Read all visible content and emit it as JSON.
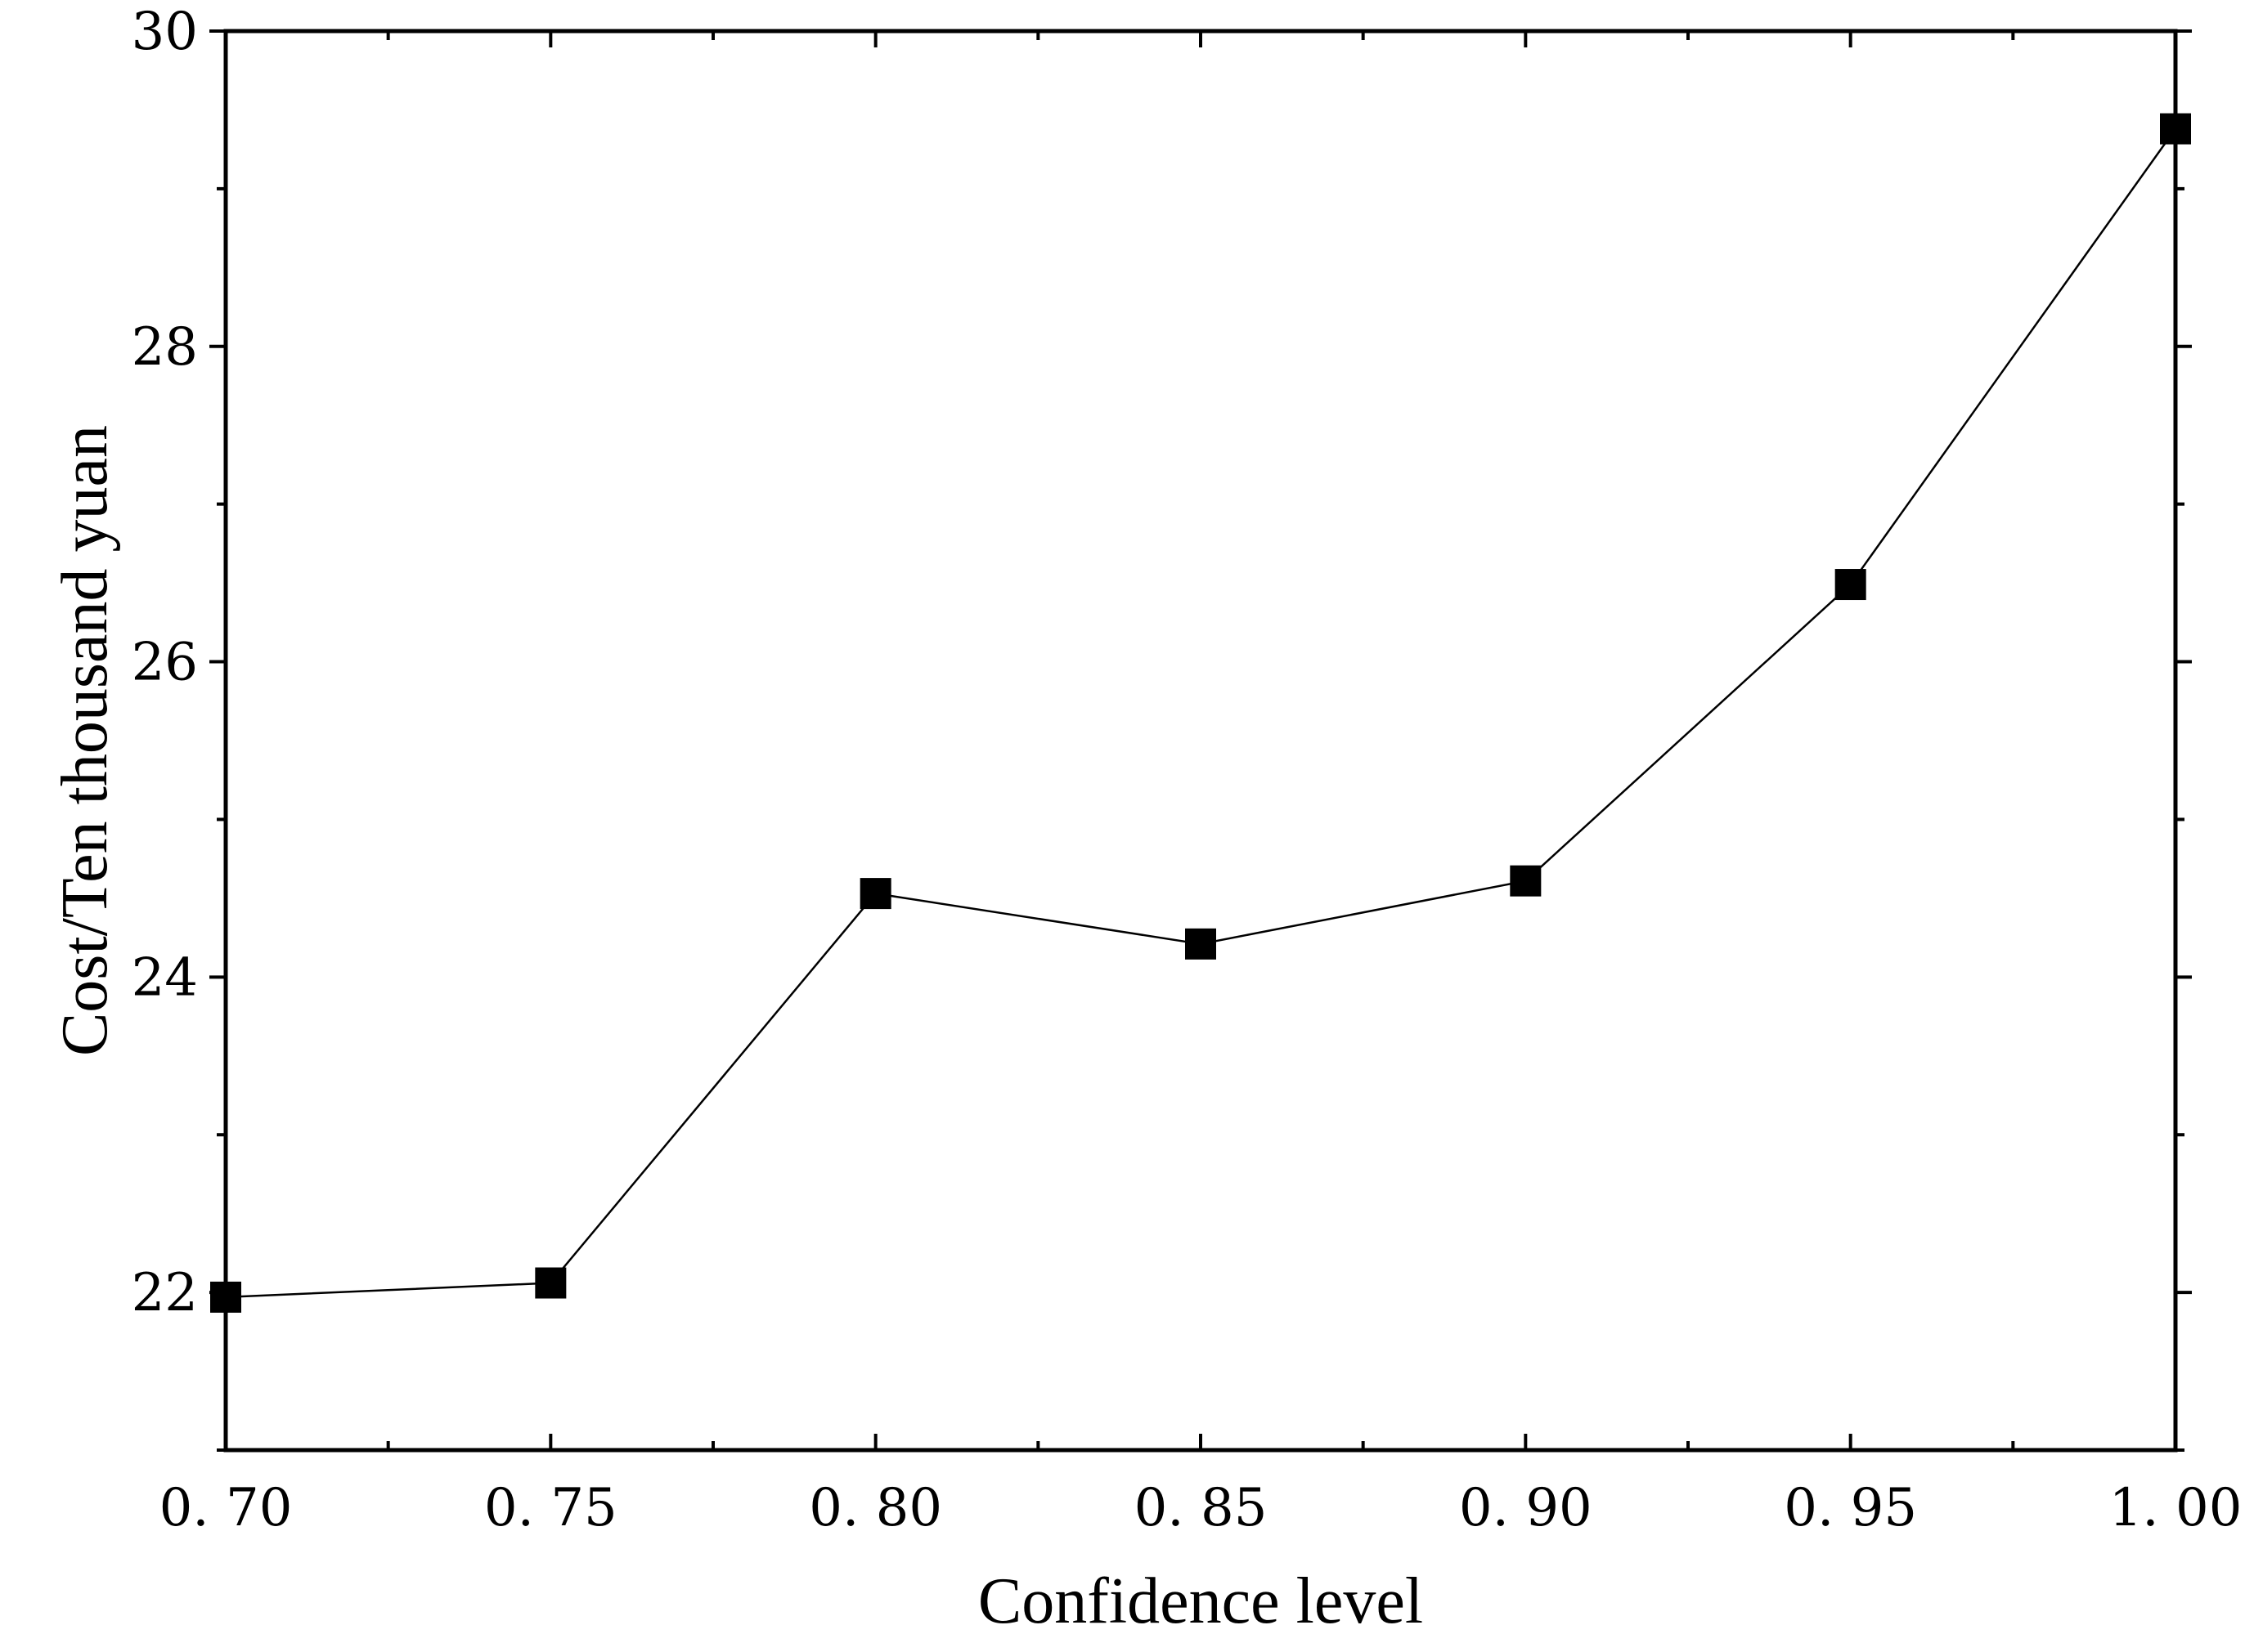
{
  "chart_data": {
    "type": "line",
    "xlabel": "Confidence level",
    "ylabel": "Cost/Ten thousand yuan",
    "xlim": [
      0.7,
      1.0
    ],
    "ylim": [
      21,
      30
    ],
    "x_ticks": [
      0.7,
      0.75,
      0.8,
      0.85,
      0.9,
      0.95,
      1.0
    ],
    "x_tick_labels": [
      "0. 70",
      "0. 75",
      "0. 80",
      "0. 85",
      "0. 90",
      "0. 95",
      "1. 00"
    ],
    "y_ticks": [
      22,
      24,
      26,
      28,
      30
    ],
    "y_tick_labels": [
      "22",
      "24",
      "26",
      "28",
      "30"
    ],
    "grid": false,
    "marker": "square",
    "series": [
      {
        "x": [
          0.7,
          0.75,
          0.8,
          0.85,
          0.9,
          0.95,
          1.0
        ],
        "values": [
          21.97,
          22.06,
          24.53,
          24.21,
          24.61,
          26.49,
          29.38
        ]
      }
    ]
  }
}
